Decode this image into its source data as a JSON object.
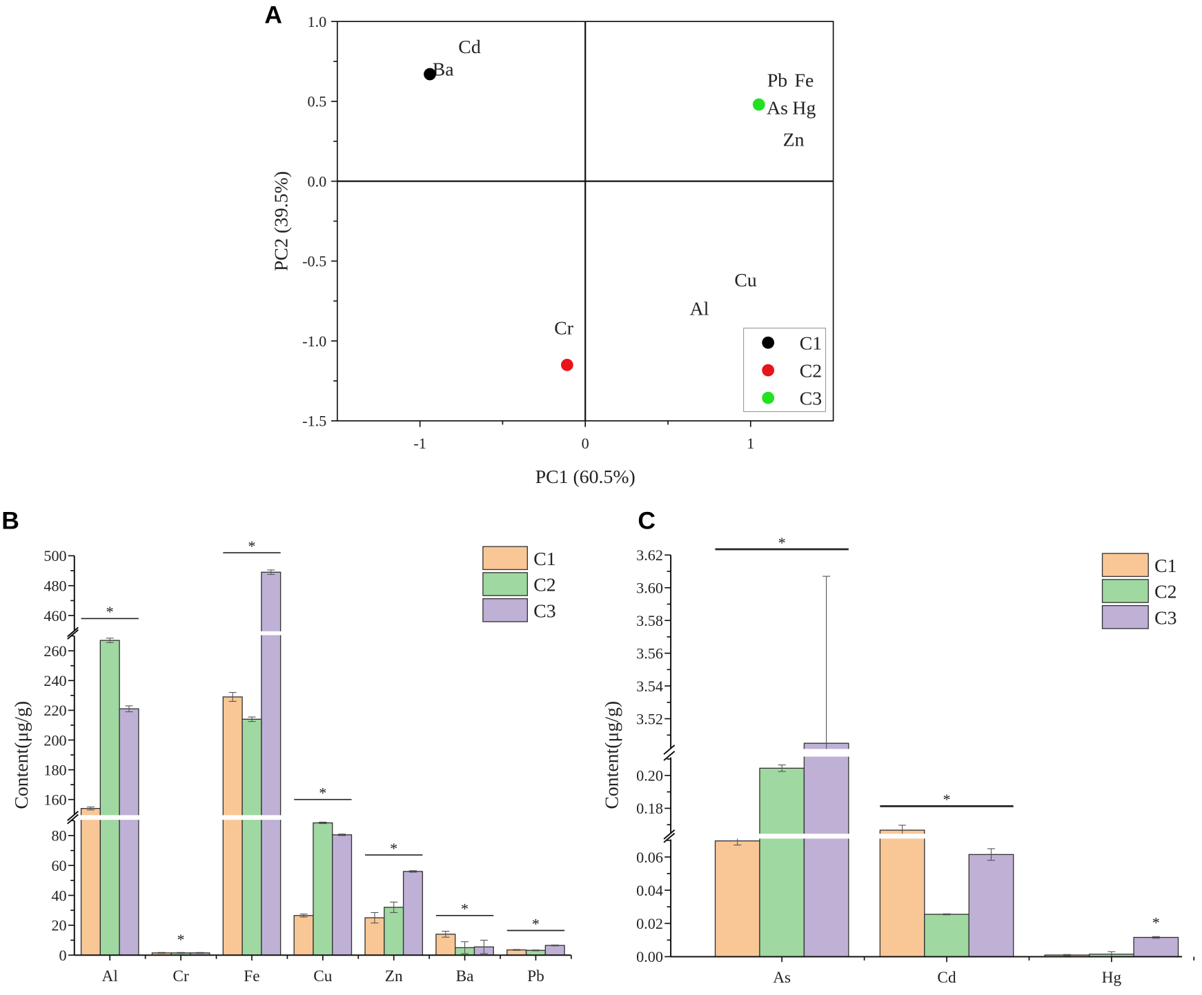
{
  "chart_data": [
    {
      "type": "scatter",
      "panel_label": "A",
      "xlabel": "PC1 (60.5%)",
      "ylabel": "PC2 (39.5%)",
      "xlim": [
        -1.5,
        1.5
      ],
      "ylim": [
        -1.5,
        1.0
      ],
      "xticks": [
        -1,
        0,
        1
      ],
      "xticklabels": [
        "-1",
        "0",
        "1"
      ],
      "xminor": [
        -0.5,
        0.5
      ],
      "yticks": [
        -1.5,
        -1.0,
        -0.5,
        0.0,
        0.5,
        1.0
      ],
      "yticklabels": [
        "-1.5",
        "-1.0",
        "-0.5",
        "0.0",
        "0.5",
        "1.0"
      ],
      "yminor": [
        -1.25,
        -0.75,
        -0.25,
        0.25,
        0.75
      ],
      "series": [
        {
          "name": "C1",
          "color": "#000000",
          "x": -0.94,
          "y": 0.67
        },
        {
          "name": "C2",
          "color": "#e8141a",
          "x": -0.11,
          "y": -1.15
        },
        {
          "name": "C3",
          "color": "#22e022",
          "x": 1.05,
          "y": 0.48
        }
      ],
      "annotations": [
        {
          "text": "Cd",
          "x": -0.7,
          "y": 0.84
        },
        {
          "text": "Ba",
          "x": -0.86,
          "y": 0.7
        },
        {
          "text": "Pb",
          "x": 1.14,
          "y": 0.57
        },
        {
          "text": "Fe",
          "x": 1.15,
          "y": 0.53
        },
        {
          "text": "As",
          "x": 1.2,
          "y": 0.44
        },
        {
          "text": "Hg",
          "x": 1.18,
          "y": 0.44
        },
        {
          "text": "Zn",
          "x": 1.26,
          "y": 0.26
        },
        {
          "text": "Cu",
          "x": 0.97,
          "y": -0.62
        },
        {
          "text": "Al",
          "x": 0.69,
          "y": -0.8
        },
        {
          "text": "Cr",
          "x": -0.13,
          "y": -0.92
        }
      ],
      "legend": {
        "position": "bottom-right",
        "entries": [
          "C1",
          "C2",
          "C3"
        ]
      }
    },
    {
      "type": "bar",
      "panel_label": "B",
      "xlabel": "",
      "ylabel": "Content(μg/g)",
      "categories": [
        "Al",
        "Cr",
        "Fe",
        "Cu",
        "Zn",
        "Ba",
        "Pb"
      ],
      "series": [
        {
          "name": "C1",
          "color": "#f9c796",
          "values": [
            154,
            1.5,
            229,
            26.5,
            25,
            14,
            3.5
          ],
          "errors": [
            1,
            0.3,
            3,
            1,
            3.5,
            2,
            0.3
          ]
        },
        {
          "name": "C2",
          "color": "#9fd8a0",
          "values": [
            267,
            1.5,
            214,
            88.5,
            32,
            5,
            3.2
          ],
          "errors": [
            1.5,
            0.3,
            1.5,
            0.5,
            3.5,
            4,
            0.3
          ]
        },
        {
          "name": "C3",
          "color": "#bfb0d6",
          "values": [
            221,
            1.5,
            489,
            80.5,
            56,
            5.5,
            6.5
          ],
          "errors": [
            2,
            0.3,
            1.5,
            0.5,
            0.5,
            4.5,
            0.3
          ]
        }
      ],
      "axis_segments": [
        {
          "range": [
            0,
            90
          ],
          "ticks": [
            0,
            20,
            40,
            60,
            80
          ],
          "ticklabels": [
            "0",
            "20",
            "40",
            "60",
            "80"
          ],
          "minor": [
            10,
            30,
            50,
            70,
            90
          ]
        },
        {
          "range": [
            150,
            270
          ],
          "ticks": [
            160,
            180,
            200,
            220,
            240,
            260
          ],
          "ticklabels": [
            "160",
            "180",
            "200",
            "220",
            "240",
            "260"
          ],
          "minor": [
            170,
            190,
            210,
            230,
            250,
            270
          ]
        },
        {
          "range": [
            450,
            500
          ],
          "ticks": [
            460,
            480,
            500
          ],
          "ticklabels": [
            "460",
            "480",
            "500"
          ],
          "minor": [
            470,
            490
          ]
        }
      ],
      "significance": [
        {
          "category": "Al",
          "y": 458,
          "line": true,
          "label": "*"
        },
        {
          "category": "Cr",
          "y": 6,
          "line": false,
          "label": "*"
        },
        {
          "category": "Fe",
          "y": 502,
          "line": true,
          "label": "*"
        },
        {
          "category": "Cu",
          "y": 160,
          "line": true,
          "label": "*"
        },
        {
          "category": "Zn",
          "y": 67,
          "line": true,
          "label": "*"
        },
        {
          "category": "Ba",
          "y": 26.5,
          "line": true,
          "label": "*"
        },
        {
          "category": "Pb",
          "y": 16.5,
          "line": true,
          "label": "*"
        }
      ],
      "legend": {
        "position": "top-right",
        "entries": [
          "C1",
          "C2",
          "C3"
        ]
      }
    },
    {
      "type": "bar",
      "panel_label": "C",
      "xlabel": "",
      "ylabel": "Content(μg/g)",
      "categories": [
        "As",
        "Cd",
        "Hg"
      ],
      "series": [
        {
          "name": "C1",
          "color": "#f9c796",
          "values": [
            0.0697,
            0.1667,
            0.001
          ],
          "errors": [
            0.0025,
            0.003,
            0.0003
          ]
        },
        {
          "name": "C2",
          "color": "#9fd8a0",
          "values": [
            0.2044,
            0.0255,
            0.0015
          ],
          "errors": [
            0.002,
            0.0003,
            0.0015
          ]
        },
        {
          "name": "C3",
          "color": "#bfb0d6",
          "values": [
            3.505,
            0.0615,
            0.0116
          ],
          "errors": [
            0.102,
            0.0035,
            0.0005
          ]
        }
      ],
      "axis_segments": [
        {
          "range": [
            0,
            0.0706
          ],
          "ticks": [
            0,
            0.02,
            0.04,
            0.06
          ],
          "ticklabels": [
            "0.00",
            "0.02",
            "0.04",
            "0.06"
          ],
          "minor": [
            0.01,
            0.03,
            0.05,
            0.07
          ]
        },
        {
          "range": [
            0.165,
            0.211
          ],
          "ticks": [
            0.18,
            0.2
          ],
          "ticklabels": [
            "0.18",
            "0.20"
          ],
          "minor": [
            0.17,
            0.19,
            0.21
          ]
        },
        {
          "range": [
            3.502,
            3.62
          ],
          "ticks": [
            3.52,
            3.54,
            3.56,
            3.58,
            3.6,
            3.62
          ],
          "ticklabels": [
            "3.52",
            "3.54",
            "3.56",
            "3.58",
            "3.60",
            "3.62"
          ],
          "minor": [
            3.51,
            3.53,
            3.55,
            3.57,
            3.59,
            3.61
          ]
        }
      ],
      "significance": [
        {
          "category": "As",
          "y": 3.6235,
          "line": true,
          "label": "*"
        },
        {
          "category": "Cd",
          "y": 0.1813,
          "line": true,
          "label": "*"
        },
        {
          "category": "Hg",
          "y": 0.0165,
          "line": false,
          "label": "*",
          "over_series": "C3"
        }
      ],
      "legend": {
        "position": "top-right",
        "entries": [
          "C1",
          "C2",
          "C3"
        ]
      }
    }
  ]
}
